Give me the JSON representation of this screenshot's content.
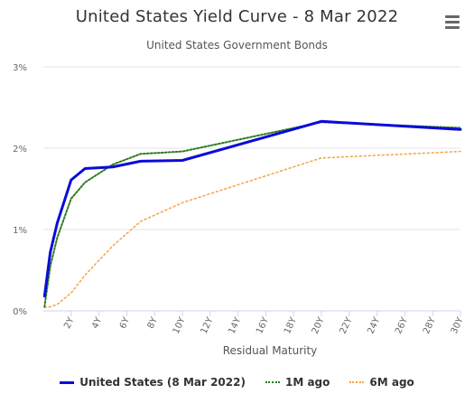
{
  "header": {
    "title": "United States Yield Curve - 8 Mar 2022",
    "subtitle": "United States Government Bonds",
    "menu_icon": "hamburger-menu-icon"
  },
  "colors": {
    "current": "#0b0bd9",
    "one_month": "#2e7d1f",
    "six_month": "#f5a243",
    "grid": "#e6e6e6",
    "axis": "#ccd6eb"
  },
  "chart_data": {
    "type": "line",
    "title": "United States Yield Curve - 8 Mar 2022",
    "subtitle": "United States Government Bonds",
    "xlabel": "Residual Maturity",
    "ylabel": "",
    "xlim": [
      0,
      30
    ],
    "ylim": [
      0,
      3
    ],
    "x_ticks": [
      "2Y",
      "4Y",
      "6Y",
      "8Y",
      "10Y",
      "12Y",
      "14Y",
      "16Y",
      "18Y",
      "20Y",
      "22Y",
      "24Y",
      "26Y",
      "28Y",
      "30Y"
    ],
    "y_ticks": [
      "0%",
      "1%",
      "2%",
      "3%"
    ],
    "grid": true,
    "legend_position": "bottom-center",
    "series": [
      {
        "name": "United States (8 Mar 2022)",
        "style": "solid",
        "x": [
          0.083,
          0.5,
          1,
          2,
          3,
          5,
          7,
          10,
          20,
          30
        ],
        "y": [
          0.18,
          0.72,
          1.08,
          1.61,
          1.75,
          1.77,
          1.84,
          1.85,
          2.33,
          2.23
        ]
      },
      {
        "name": "1M ago",
        "style": "dotted",
        "x": [
          0.083,
          0.5,
          1,
          2,
          3,
          5,
          7,
          10,
          20,
          30
        ],
        "y": [
          0.05,
          0.55,
          0.9,
          1.38,
          1.58,
          1.8,
          1.93,
          1.96,
          2.32,
          2.25
        ]
      },
      {
        "name": "6M ago",
        "style": "dotted",
        "x": [
          0.083,
          0.5,
          1,
          2,
          3,
          5,
          7,
          10,
          20,
          30
        ],
        "y": [
          0.04,
          0.05,
          0.08,
          0.22,
          0.44,
          0.8,
          1.1,
          1.33,
          1.88,
          1.96
        ]
      }
    ]
  }
}
